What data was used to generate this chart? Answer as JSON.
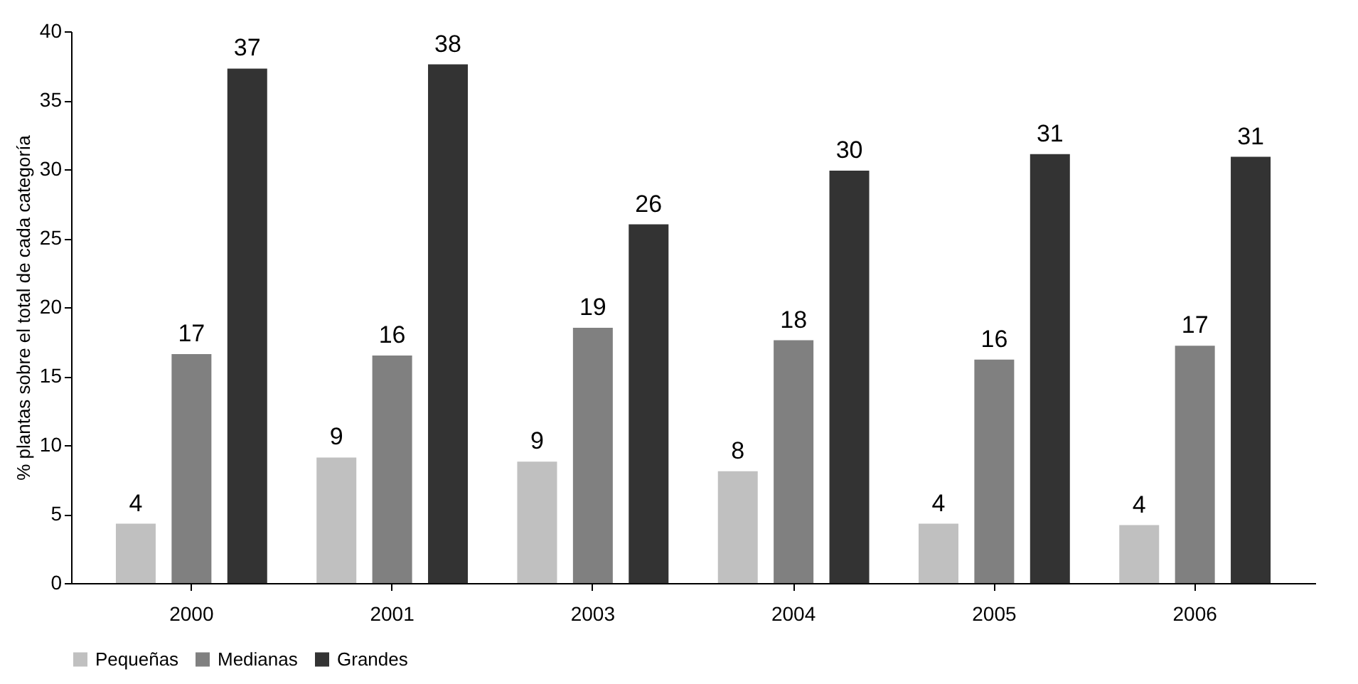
{
  "chart_data": {
    "type": "bar",
    "ylabel": "% plantas sobre el total de cada categoría",
    "categories": [
      "2000",
      "2001",
      "2003",
      "2004",
      "2005",
      "2006"
    ],
    "series": [
      {
        "name": "Pequeñas",
        "color": "#c0c0c0",
        "values": [
          4.3,
          9.1,
          8.8,
          8.1,
          4.3,
          4.2
        ],
        "value_labels": [
          "4",
          "9",
          "9",
          "8",
          "4",
          "4"
        ]
      },
      {
        "name": "Medianas",
        "color": "#808080",
        "values": [
          16.6,
          16.5,
          18.5,
          17.6,
          16.2,
          17.2
        ],
        "value_labels": [
          "17",
          "16",
          "19",
          "18",
          "16",
          "17"
        ]
      },
      {
        "name": "Grandes",
        "color": "#333333",
        "values": [
          37.3,
          37.6,
          26.0,
          29.9,
          31.1,
          30.9
        ],
        "value_labels": [
          "37",
          "38",
          "26",
          "30",
          "31",
          "31"
        ]
      }
    ],
    "ylim": [
      0,
      40
    ],
    "yticks": [
      0,
      5,
      10,
      15,
      20,
      25,
      30,
      35,
      40
    ],
    "grid": false,
    "legend": "bottom"
  }
}
